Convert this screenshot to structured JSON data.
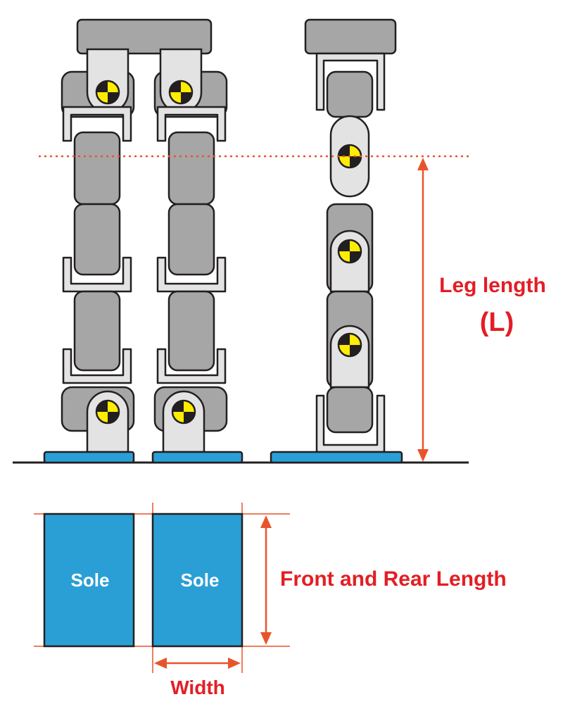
{
  "labels": {
    "leg_length": "Leg length",
    "leg_symbol": "(L)",
    "sole_left": "Sole",
    "sole_right": "Sole",
    "front_rear_length": "Front and Rear Length",
    "width": "Width"
  },
  "colors": {
    "label_red": "#e31e24",
    "dimension_orange": "#e8542a",
    "sole_blue": "#2a9fd6",
    "segment_gray": "#a6a6a6",
    "bracket_light": "#e3e3e3",
    "outline": "#231f20",
    "marker_yellow": "#ffed00"
  }
}
